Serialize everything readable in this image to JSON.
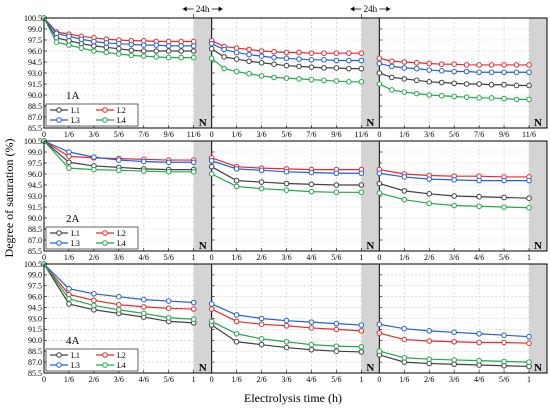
{
  "chart_data": {
    "type": "line",
    "ylabel": "Degree of saturation (%)",
    "xlabel": "Electrolysis time (h)",
    "interval_label": "24h",
    "break_label": "N",
    "y_ticks": [
      85.5,
      87.0,
      88.5,
      90.0,
      91.5,
      93.0,
      94.5,
      96.0,
      97.5,
      99.0,
      100.5
    ],
    "ylim": [
      85.5,
      100.5
    ],
    "grid": true,
    "legend_position": "bottom-left",
    "colors": {
      "L1": "#404040",
      "L2": "#e8292b",
      "L3": "#2160d8",
      "L4": "#21a84c"
    },
    "series_names": [
      "L1",
      "L2",
      "L3",
      "L4"
    ],
    "panels": [
      {
        "label": "1A",
        "x_ticks": [
          [
            "0",
            "1/6",
            "3/6",
            "5/6",
            "7/6",
            "9/6",
            "11/6"
          ],
          [
            "0",
            "1/6",
            "3/6",
            "5/6",
            "7/6",
            "9/6",
            "11/6"
          ],
          [
            "0",
            "1/6",
            "3/6",
            "5/6",
            "7/6",
            "9/6",
            "11/6"
          ]
        ],
        "x": [
          [
            0,
            1,
            2,
            3,
            4,
            5,
            6,
            7,
            8,
            9,
            10,
            11,
            12
          ],
          [
            0,
            1,
            2,
            3,
            4,
            5,
            6,
            7,
            8,
            9,
            10,
            11,
            12
          ],
          [
            0,
            1,
            2,
            3,
            4,
            5,
            6,
            7,
            8,
            9,
            10,
            11,
            12
          ]
        ],
        "series": [
          {
            "name": "L1",
            "values": [
              [
                100.5,
                97.8,
                97.4,
                97.0,
                96.7,
                96.5,
                96.3,
                96.1,
                96.0,
                96.0,
                96.0,
                96.0,
                96.0
              ],
              [
                96.3,
                95.2,
                94.9,
                94.6,
                94.4,
                94.2,
                94.0,
                93.9,
                93.8,
                93.7,
                93.7,
                93.6,
                93.6
              ],
              [
                93.0,
                92.4,
                92.2,
                92.0,
                91.8,
                91.7,
                91.6,
                91.5,
                91.5,
                91.4,
                91.4,
                91.3,
                91.3
              ]
            ]
          },
          {
            "name": "L2",
            "values": [
              [
                100.5,
                98.6,
                98.3,
                98.0,
                97.8,
                97.6,
                97.5,
                97.4,
                97.4,
                97.3,
                97.3,
                97.3,
                97.3
              ],
              [
                97.4,
                96.6,
                96.4,
                96.2,
                96.0,
                95.9,
                95.8,
                95.8,
                95.7,
                95.7,
                95.7,
                95.7,
                95.7
              ],
              [
                95.0,
                94.6,
                94.5,
                94.4,
                94.3,
                94.2,
                94.2,
                94.1,
                94.1,
                94.1,
                94.1,
                94.1,
                94.1
              ]
            ]
          },
          {
            "name": "L3",
            "values": [
              [
                100.5,
                98.4,
                98.0,
                97.6,
                97.3,
                97.1,
                97.0,
                96.9,
                96.8,
                96.8,
                96.7,
                96.7,
                96.7
              ],
              [
                97.0,
                96.2,
                95.8,
                95.5,
                95.3,
                95.1,
                95.0,
                94.9,
                94.8,
                94.8,
                94.7,
                94.7,
                94.7
              ],
              [
                94.3,
                93.9,
                93.7,
                93.6,
                93.4,
                93.3,
                93.2,
                93.2,
                93.1,
                93.1,
                93.1,
                93.1,
                93.1
              ]
            ]
          },
          {
            "name": "L4",
            "values": [
              [
                100.5,
                97.2,
                96.8,
                96.4,
                96.0,
                95.8,
                95.6,
                95.4,
                95.3,
                95.2,
                95.1,
                95.1,
                95.1
              ],
              [
                95.0,
                93.6,
                93.2,
                92.9,
                92.6,
                92.4,
                92.3,
                92.2,
                92.1,
                92.0,
                91.9,
                91.8,
                91.8
              ],
              [
                91.5,
                90.7,
                90.4,
                90.2,
                90.0,
                89.9,
                89.8,
                89.7,
                89.6,
                89.6,
                89.5,
                89.4,
                89.4
              ]
            ]
          }
        ]
      },
      {
        "label": "2A",
        "x_ticks": [
          [
            "0",
            "1/6",
            "2/6",
            "3/6",
            "4/6",
            "5/6",
            "1"
          ],
          [
            "0",
            "1/6",
            "2/6",
            "3/6",
            "4/6",
            "5/6",
            "1"
          ],
          [
            "0",
            "1/6",
            "2/6",
            "3/6",
            "4/6",
            "5/6",
            "1"
          ]
        ],
        "x": [
          [
            0,
            1,
            2,
            3,
            4,
            5,
            6
          ],
          [
            0,
            1,
            2,
            3,
            4,
            5,
            6
          ],
          [
            0,
            1,
            2,
            3,
            4,
            5,
            6
          ]
        ],
        "series": [
          {
            "name": "L1",
            "values": [
              [
                100.5,
                97.6,
                97.1,
                96.9,
                96.7,
                96.6,
                96.6
              ],
              [
                97.0,
                95.1,
                94.9,
                94.7,
                94.6,
                94.5,
                94.5
              ],
              [
                94.7,
                93.7,
                93.3,
                93.0,
                92.9,
                92.8,
                92.7
              ]
            ]
          },
          {
            "name": "L2",
            "values": [
              [
                100.5,
                98.4,
                98.2,
                98.1,
                98.0,
                97.9,
                97.9
              ],
              [
                98.2,
                97.0,
                96.8,
                96.7,
                96.6,
                96.6,
                96.6
              ],
              [
                96.6,
                96.0,
                95.8,
                95.7,
                95.7,
                95.6,
                95.6
              ]
            ]
          },
          {
            "name": "L3",
            "values": [
              [
                100.5,
                99.0,
                98.3,
                97.9,
                97.7,
                97.6,
                97.6
              ],
              [
                97.8,
                96.7,
                96.5,
                96.3,
                96.2,
                96.1,
                96.1
              ],
              [
                96.1,
                95.6,
                95.3,
                95.2,
                95.1,
                95.1,
                95.1
              ]
            ]
          },
          {
            "name": "L4",
            "values": [
              [
                100.5,
                96.8,
                96.6,
                96.5,
                96.4,
                96.3,
                96.3
              ],
              [
                96.0,
                94.3,
                94.0,
                93.8,
                93.6,
                93.5,
                93.5
              ],
              [
                93.4,
                92.5,
                92.0,
                91.7,
                91.6,
                91.5,
                91.4
              ]
            ]
          }
        ]
      },
      {
        "label": "4A",
        "x_ticks": [
          [
            "0",
            "1/6",
            "2/6",
            "3/6",
            "4/6",
            "5/6",
            "1"
          ],
          [
            "0",
            "1/6",
            "2/6",
            "3/6",
            "4/6",
            "5/6",
            "1"
          ],
          [
            "0",
            "1/6",
            "2/6",
            "3/6",
            "4/6",
            "5/6",
            "1"
          ]
        ],
        "x": [
          [
            0,
            1,
            2,
            3,
            4,
            5,
            6
          ],
          [
            0,
            1,
            2,
            3,
            4,
            5,
            6
          ],
          [
            0,
            1,
            2,
            3,
            4,
            5,
            6
          ]
        ],
        "series": [
          {
            "name": "L1",
            "values": [
              [
                100.5,
                95.0,
                94.2,
                93.7,
                93.2,
                92.6,
                92.4
              ],
              [
                92.1,
                89.8,
                89.4,
                89.0,
                88.7,
                88.5,
                88.4
              ],
              [
                88.0,
                87.0,
                86.8,
                86.7,
                86.6,
                86.5,
                86.4
              ]
            ]
          },
          {
            "name": "L2",
            "values": [
              [
                100.5,
                96.3,
                95.5,
                94.9,
                94.6,
                94.4,
                94.3
              ],
              [
                94.3,
                92.6,
                92.2,
                92.0,
                91.7,
                91.5,
                91.3
              ],
              [
                91.0,
                90.1,
                89.9,
                89.8,
                89.7,
                89.7,
                89.6
              ]
            ]
          },
          {
            "name": "L3",
            "values": [
              [
                100.5,
                97.1,
                96.4,
                96.0,
                95.6,
                95.4,
                95.2
              ],
              [
                95.0,
                93.5,
                93.0,
                92.7,
                92.5,
                92.3,
                92.1
              ],
              [
                92.2,
                91.6,
                91.3,
                91.1,
                90.9,
                90.7,
                90.5
              ]
            ]
          },
          {
            "name": "L4",
            "values": [
              [
                100.5,
                95.7,
                94.8,
                94.2,
                93.7,
                93.1,
                92.9
              ],
              [
                92.6,
                90.9,
                90.2,
                89.8,
                89.4,
                89.2,
                89.1
              ],
              [
                88.5,
                87.6,
                87.4,
                87.3,
                87.2,
                87.1,
                87.0
              ]
            ]
          }
        ]
      }
    ]
  }
}
